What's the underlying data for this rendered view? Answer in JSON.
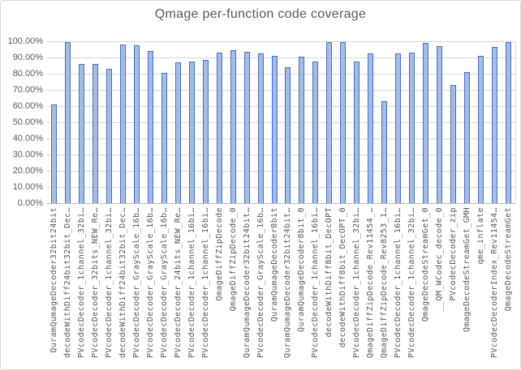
{
  "chart_data": {
    "type": "bar",
    "title": "Qmage per-function code coverage",
    "xlabel": "",
    "ylabel": "",
    "ylim": [
      0,
      100
    ],
    "grid": true,
    "legend": "none",
    "y_ticks": [
      "0.00%",
      "10.00%",
      "20.00%",
      "30.00%",
      "40.00%",
      "50.00%",
      "60.00%",
      "70.00%",
      "80.00%",
      "90.00%",
      "100.00%"
    ],
    "categories": [
      "QuramQumageDecoder32bit24bit",
      "decodeWithDiff24bit32bit_Dec…",
      "PVcodecDecoder_1channel_32bi…",
      "PVcodecDecoder_32bits_NEW_Re…",
      "PVcodecDecoder_1channel_32bi…",
      "decodeWithDiff24bit32bit_Dec…",
      "PVcodecDecoder_GrayScale_16b…",
      "PVcodecDecoder_GrayScale_16b…",
      "PVcodecDecoder_GrayScale_16b…",
      "PVcodecDecoder_24bits_NEW_Re…",
      "PVcodecDecoder_1channel_16bi…",
      "PVcodecDecoder_1channel_16bi…",
      "QmageDiffZipDecode",
      "QmageDiffZipDecode_0",
      "QuramQumageDecoder32bit24bit…",
      "PVcodecDecoder_GrayScale_16b…",
      "QuramQumageDecoder8bit",
      "QuramQumageDecoder32bit24bit…",
      "QuramQumageDecoder8bit_0",
      "PVcodecDecoder_1channel_16bi…",
      "decodeWithDiff8bit_DecOPT",
      "decodeWithDiff8bit_DecOPT_0",
      "PVcodecDecoder_1channel_32bi…",
      "QmageDiffZipDecode_Rev11454_…",
      "QmageDiffZipDecode_Rev8253_1…",
      "PVcodecDecoder_1channel_16bi…",
      "PVcodecDecoder_1channel_32bi…",
      "QmageDecodeStreamGet_0",
      "__QM_WCodec_decode_0",
      "PVcodecDecoder_zip",
      "QmageDecodeStreamGet_GMH",
      "qme_inflate",
      "PVcodecDecoderIndex_Rev11454…",
      "QmageDecodeStreamGet"
    ],
    "values": [
      61,
      99.5,
      86,
      86,
      83,
      98,
      97.5,
      94,
      80.5,
      87,
      87.5,
      88.5,
      93,
      94.5,
      93.5,
      92.5,
      91,
      84,
      90.5,
      87.5,
      99.5,
      99.5,
      87.5,
      92.5,
      63,
      92.5,
      93,
      99,
      97,
      73,
      81,
      91,
      96.5,
      99.5
    ],
    "colors": {
      "bar_fill": "#a7bce2",
      "bar_border": "#4472c4",
      "gridline": "#d9d9d9",
      "axis_line": "#bfbfbf",
      "text": "#595959"
    }
  }
}
